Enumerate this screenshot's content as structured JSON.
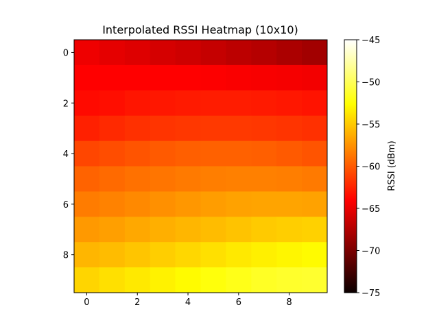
{
  "chart_data": {
    "type": "heatmap",
    "title": "Interpolated RSSI Heatmap (10x10)",
    "xlabel": "",
    "ylabel": "",
    "x_ticks": [
      0,
      2,
      4,
      6,
      8
    ],
    "y_ticks": [
      0,
      2,
      4,
      6,
      8
    ],
    "xlim": [
      -0.5,
      9.5
    ],
    "ylim": [
      9.5,
      -0.5
    ],
    "colormap": "hot",
    "colorbar": {
      "label": "RSSI (dBm)",
      "range": [
        -75,
        -45
      ],
      "ticks": [
        -45,
        -50,
        -55,
        -60,
        -65,
        -70,
        -75
      ],
      "tick_labels": [
        "−45",
        "−50",
        "−55",
        "−60",
        "−65",
        "−70",
        "−75"
      ]
    },
    "values": [
      [
        -65.2,
        -65.6,
        -65.9,
        -66.3,
        -66.6,
        -67.0,
        -67.4,
        -67.7,
        -68.1,
        -68.5
      ],
      [
        -64.1,
        -64.2,
        -64.3,
        -64.4,
        -64.5,
        -64.6,
        -64.7,
        -64.8,
        -64.9,
        -65.0
      ],
      [
        -63.6,
        -63.4,
        -63.1,
        -63.0,
        -62.9,
        -62.8,
        -62.8,
        -62.9,
        -63.0,
        -63.2
      ],
      [
        -62.6,
        -62.2,
        -61.9,
        -61.7,
        -61.6,
        -61.5,
        -61.5,
        -61.6,
        -61.7,
        -61.9
      ],
      [
        -60.9,
        -60.6,
        -60.3,
        -60.0,
        -59.8,
        -59.7,
        -59.7,
        -59.8,
        -60.0,
        -60.3
      ],
      [
        -59.6,
        -59.3,
        -59.0,
        -58.8,
        -58.6,
        -58.4,
        -58.3,
        -58.3,
        -58.4,
        -58.6
      ],
      [
        -58.5,
        -58.2,
        -57.9,
        -57.6,
        -57.3,
        -57.0,
        -56.8,
        -56.7,
        -56.7,
        -56.8
      ],
      [
        -57.2,
        -56.9,
        -56.5,
        -56.2,
        -55.9,
        -55.6,
        -55.3,
        -55.0,
        -54.8,
        -54.7
      ],
      [
        -55.9,
        -55.6,
        -55.2,
        -54.8,
        -54.4,
        -54.0,
        -53.6,
        -53.3,
        -53.0,
        -52.8
      ],
      [
        -54.5,
        -54.0,
        -53.6,
        -53.2,
        -52.8,
        -52.3,
        -51.9,
        -51.5,
        -51.3,
        -51.2
      ]
    ]
  }
}
